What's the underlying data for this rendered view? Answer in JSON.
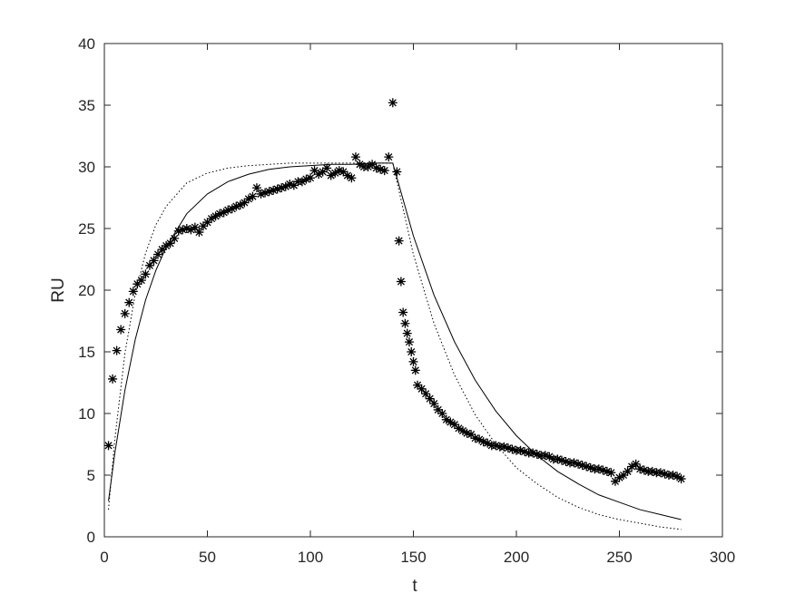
{
  "chart_data": {
    "type": "mixed",
    "xlabel": "t",
    "ylabel": "RU",
    "xlim": [
      0,
      300
    ],
    "ylim": [
      0,
      40
    ],
    "xticks": [
      0,
      50,
      100,
      150,
      200,
      250,
      300
    ],
    "yticks": [
      0,
      5,
      10,
      15,
      20,
      25,
      30,
      35,
      40
    ],
    "series": [
      {
        "type": "scatter",
        "marker": "asterisk",
        "color": "#000000",
        "x": [
          2,
          4,
          6,
          8,
          10,
          12,
          14,
          16,
          18,
          20,
          22,
          24,
          26,
          28,
          30,
          32,
          34,
          36,
          38,
          40,
          42,
          44,
          46,
          48,
          50,
          52,
          54,
          56,
          58,
          60,
          62,
          64,
          66,
          68,
          70,
          72,
          74,
          76,
          78,
          80,
          82,
          84,
          86,
          88,
          90,
          92,
          94,
          96,
          98,
          100,
          102,
          104,
          106,
          108,
          110,
          112,
          114,
          116,
          118,
          120,
          122,
          124,
          126,
          128,
          130,
          132,
          134,
          136,
          138,
          140,
          142,
          143,
          144,
          145,
          146,
          147,
          148,
          149,
          150,
          151,
          152,
          154,
          156,
          158,
          160,
          162,
          164,
          166,
          168,
          170,
          172,
          174,
          176,
          178,
          180,
          182,
          184,
          186,
          188,
          190,
          192,
          194,
          196,
          198,
          200,
          202,
          204,
          206,
          208,
          210,
          212,
          214,
          216,
          218,
          220,
          222,
          224,
          226,
          228,
          230,
          232,
          234,
          236,
          238,
          240,
          242,
          244,
          246,
          248,
          250,
          252,
          254,
          256,
          258,
          260,
          262,
          264,
          266,
          268,
          270,
          272,
          274,
          276,
          278,
          280
        ],
        "values": [
          7.4,
          12.8,
          15.1,
          16.8,
          18.1,
          19.0,
          19.9,
          20.5,
          20.8,
          21.3,
          22.0,
          22.4,
          22.9,
          23.3,
          23.6,
          23.8,
          24.2,
          24.8,
          24.9,
          25.0,
          24.9,
          25.1,
          24.7,
          25.2,
          25.5,
          25.8,
          26.0,
          26.2,
          26.3,
          26.5,
          26.6,
          26.8,
          26.9,
          27.1,
          27.4,
          27.6,
          28.3,
          27.8,
          27.9,
          28.0,
          28.1,
          28.2,
          28.3,
          28.4,
          28.6,
          28.5,
          28.8,
          28.8,
          29.0,
          29.1,
          29.7,
          29.4,
          29.6,
          29.9,
          29.3,
          29.5,
          29.7,
          29.6,
          29.3,
          29.1,
          30.8,
          30.2,
          30.0,
          30.0,
          30.2,
          29.9,
          29.8,
          29.7,
          30.8,
          35.2,
          29.6,
          24.0,
          20.7,
          18.2,
          17.3,
          16.5,
          15.8,
          15.0,
          14.2,
          13.5,
          12.3,
          12.0,
          11.6,
          11.2,
          10.8,
          10.3,
          10.0,
          9.5,
          9.3,
          9.1,
          8.8,
          8.6,
          8.4,
          8.3,
          8.0,
          7.9,
          7.7,
          7.6,
          7.4,
          7.4,
          7.3,
          7.3,
          7.2,
          7.1,
          7.0,
          7.0,
          6.9,
          6.8,
          6.8,
          6.7,
          6.6,
          6.6,
          6.5,
          6.3,
          6.3,
          6.2,
          6.1,
          6.0,
          6.0,
          5.9,
          5.8,
          5.7,
          5.6,
          5.5,
          5.5,
          5.4,
          5.3,
          5.2,
          4.5,
          4.8,
          5.0,
          5.3,
          5.7,
          5.9,
          5.5,
          5.4,
          5.3,
          5.3,
          5.2,
          5.2,
          5.1,
          5.0,
          5.0,
          4.9,
          4.7
        ]
      },
      {
        "type": "line",
        "dash": "solid",
        "color": "#000000",
        "x": [
          2,
          5,
          10,
          15,
          20,
          25,
          30,
          40,
          50,
          60,
          70,
          80,
          90,
          100,
          110,
          120,
          130,
          140,
          150,
          160,
          170,
          180,
          190,
          200,
          210,
          220,
          230,
          240,
          250,
          260,
          270,
          280
        ],
        "values": [
          2.9,
          6.7,
          11.9,
          16.0,
          19.2,
          21.6,
          23.5,
          26.2,
          27.8,
          28.8,
          29.4,
          29.8,
          30.0,
          30.1,
          30.2,
          30.2,
          30.3,
          30.3,
          24.4,
          19.6,
          15.8,
          12.7,
          10.2,
          8.2,
          6.6,
          5.3,
          4.3,
          3.4,
          2.8,
          2.2,
          1.8,
          1.4
        ]
      },
      {
        "type": "line",
        "dash": "dotted",
        "color": "#000000",
        "x": [
          2,
          5,
          10,
          15,
          20,
          25,
          30,
          40,
          50,
          60,
          70,
          80,
          90,
          100,
          110,
          120,
          130,
          140,
          150,
          160,
          170,
          180,
          190,
          200,
          210,
          220,
          230,
          240,
          250,
          260,
          270,
          280
        ],
        "values": [
          2.2,
          7.8,
          14.9,
          19.7,
          23.0,
          25.3,
          26.8,
          28.7,
          29.5,
          29.9,
          30.1,
          30.2,
          30.3,
          30.3,
          30.3,
          30.3,
          30.3,
          30.3,
          22.9,
          17.3,
          13.1,
          9.9,
          7.5,
          5.6,
          4.3,
          3.2,
          2.4,
          1.8,
          1.4,
          1.1,
          0.8,
          0.6
        ]
      }
    ]
  }
}
